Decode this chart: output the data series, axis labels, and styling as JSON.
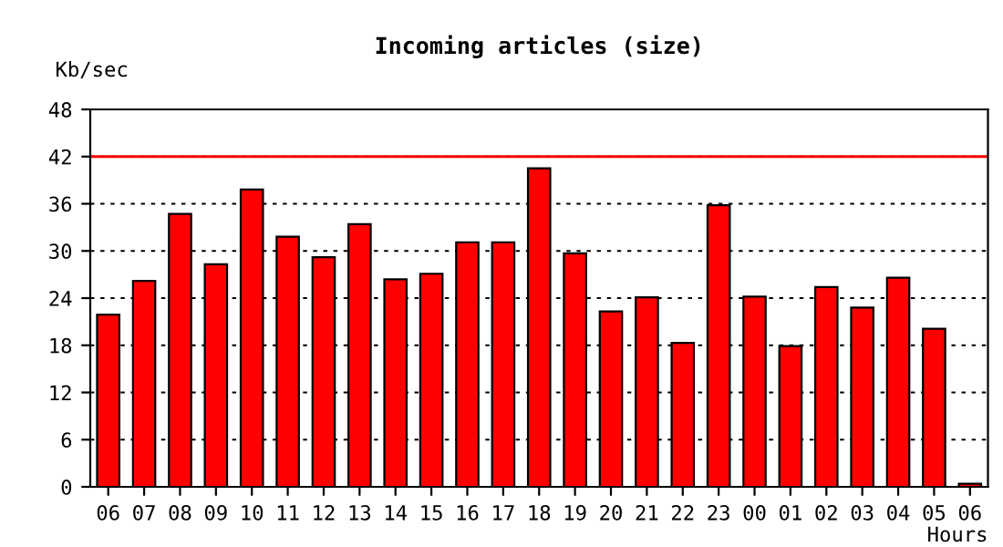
{
  "chart_data": {
    "type": "bar",
    "title": "Incoming articles (size)",
    "ylabel": "Kb/sec",
    "xlabel": "Hours",
    "categories": [
      "06",
      "07",
      "08",
      "09",
      "10",
      "11",
      "12",
      "13",
      "14",
      "15",
      "16",
      "17",
      "18",
      "19",
      "20",
      "21",
      "22",
      "23",
      "00",
      "01",
      "02",
      "03",
      "04",
      "05",
      "06"
    ],
    "series": [
      {
        "color": "#ff0000",
        "values": [
          21.9,
          26.2,
          34.7,
          28.3,
          37.8,
          31.8,
          29.2,
          33.4,
          26.4,
          27.1,
          31.1,
          31.1,
          40.5,
          29.7,
          22.3,
          24.1,
          18.3,
          35.8,
          24.2,
          17.9,
          25.4,
          22.8,
          26.6,
          20.1,
          0.4
        ]
      }
    ],
    "ylim": [
      0,
      48
    ],
    "yticks": [
      0,
      6,
      12,
      18,
      24,
      30,
      36,
      42,
      48
    ],
    "grid": "y",
    "ref_lines": [
      {
        "axis": "y",
        "value": 42,
        "color": "#ff0000",
        "line_style": "solid"
      }
    ]
  }
}
